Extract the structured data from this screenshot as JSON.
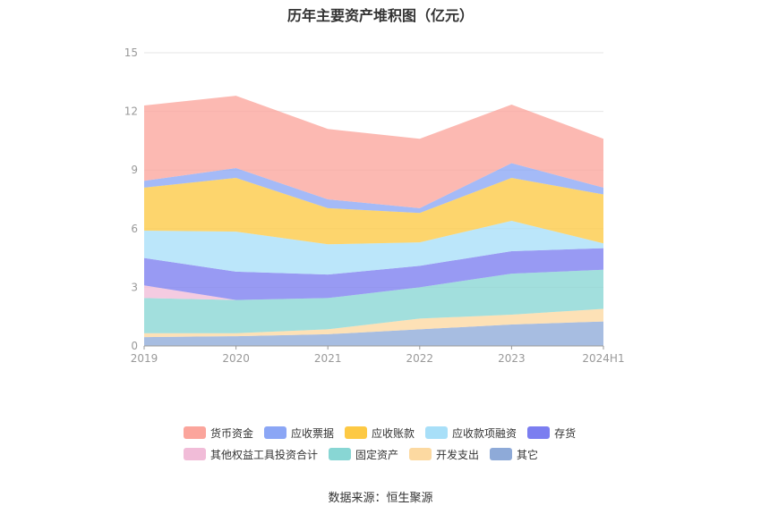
{
  "title": "历年主要资产堆积图（亿元）",
  "source": "数据来源：恒生聚源",
  "chart_data": {
    "type": "area",
    "stacked": true,
    "categories": [
      "2019",
      "2020",
      "2021",
      "2022",
      "2023",
      "2024H1"
    ],
    "ylim": [
      0,
      15
    ],
    "yticks": [
      0,
      3,
      6,
      9,
      12,
      15
    ],
    "grid": true,
    "legend_position": "bottom",
    "series": [
      {
        "name": "其它",
        "color": "#8eaad8",
        "values": [
          0.45,
          0.5,
          0.6,
          0.85,
          1.1,
          1.25
        ]
      },
      {
        "name": "开发支出",
        "color": "#fcd9a1",
        "values": [
          0.2,
          0.15,
          0.25,
          0.55,
          0.5,
          0.65
        ]
      },
      {
        "name": "固定资产",
        "color": "#88d6d4",
        "values": [
          1.8,
          1.7,
          1.6,
          1.6,
          2.1,
          2.0
        ]
      },
      {
        "name": "其他权益工具投资合计",
        "color": "#f1bcd8",
        "values": [
          0.65,
          0.0,
          0.0,
          0.0,
          0.0,
          0.0
        ]
      },
      {
        "name": "存货",
        "color": "#7b7ef0",
        "values": [
          1.4,
          1.45,
          1.2,
          1.1,
          1.15,
          1.1
        ]
      },
      {
        "name": "应收款项融资",
        "color": "#a8dff8",
        "values": [
          1.4,
          2.05,
          1.55,
          1.2,
          1.55,
          0.25
        ]
      },
      {
        "name": "应收账款",
        "color": "#fdc944",
        "values": [
          2.2,
          2.75,
          1.85,
          1.5,
          2.2,
          2.5
        ]
      },
      {
        "name": "应收票据",
        "color": "#8ba6f5",
        "values": [
          0.35,
          0.5,
          0.45,
          0.25,
          0.75,
          0.35
        ]
      },
      {
        "name": "货币资金",
        "color": "#fba59c",
        "values": [
          3.85,
          3.7,
          3.6,
          3.55,
          3.0,
          2.5
        ]
      }
    ]
  },
  "legend": {
    "row1": [
      {
        "label": "货币资金",
        "color": "#fba59c"
      },
      {
        "label": "应收票据",
        "color": "#8ba6f5"
      },
      {
        "label": "应收账款",
        "color": "#fdc944"
      },
      {
        "label": "应收款项融资",
        "color": "#a8dff8"
      },
      {
        "label": "存货",
        "color": "#7b7ef0"
      }
    ],
    "row2": [
      {
        "label": "其他权益工具投资合计",
        "color": "#f1bcd8"
      },
      {
        "label": "固定资产",
        "color": "#88d6d4"
      },
      {
        "label": "开发支出",
        "color": "#fcd9a1"
      },
      {
        "label": "其它",
        "color": "#8eaad8"
      }
    ]
  }
}
